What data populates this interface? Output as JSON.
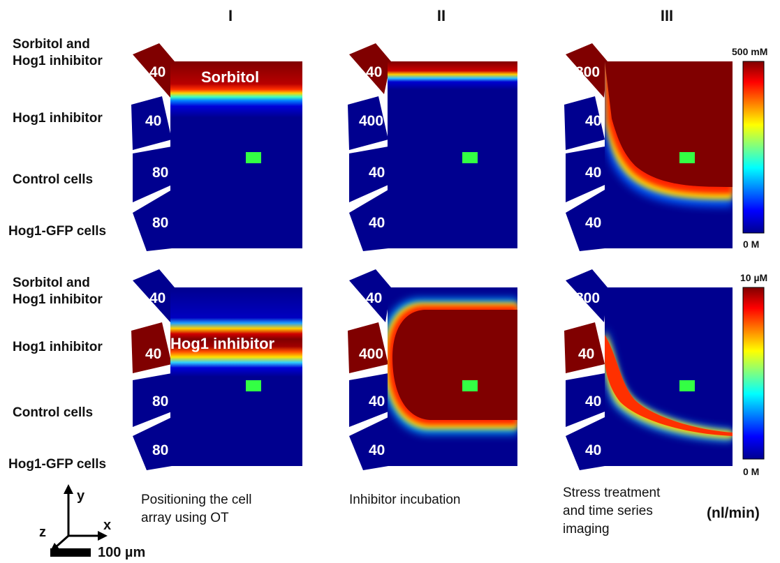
{
  "columns": [
    "I",
    "II",
    "III"
  ],
  "row_labels": {
    "top": [
      "Sorbitol and\nHog1 inhibitor",
      "Hog1 inhibitor",
      "Control cells",
      "Hog1-GFP cells"
    ],
    "bottom": [
      "Sorbitol and\nHog1 inhibitor",
      "Hog1 inhibitor",
      "Control cells",
      "Hog1-GFP cells"
    ]
  },
  "panels": {
    "top": [
      {
        "inlets": [
          "40",
          "40",
          "80",
          "80"
        ],
        "overlay": "Sorbitol"
      },
      {
        "inlets": [
          "40",
          "400",
          "40",
          "40"
        ],
        "overlay": ""
      },
      {
        "inlets": [
          "800",
          "40",
          "40",
          "40"
        ],
        "overlay": ""
      }
    ],
    "bottom": [
      {
        "inlets": [
          "40",
          "40",
          "80",
          "80"
        ],
        "overlay": "Hog1 inhibitor"
      },
      {
        "inlets": [
          "40",
          "400",
          "40",
          "40"
        ],
        "overlay": ""
      },
      {
        "inlets": [
          "800",
          "40",
          "40",
          "40"
        ],
        "overlay": ""
      }
    ]
  },
  "colorbars": {
    "top": {
      "max": "500 mM",
      "min": "0 M"
    },
    "bottom": {
      "max": "10 µM",
      "min": "0 M"
    }
  },
  "captions": [
    "Positioning the cell\narray using OT",
    "Inhibitor incubation",
    "Stress treatment\nand time series\nimaging"
  ],
  "units": "(nl/min)",
  "axes": {
    "x": "x",
    "y": "y",
    "z": "z"
  },
  "scale_bar": "100 µm",
  "colors": {
    "channel_low": "#00008f",
    "channel_high": "#800000",
    "cell_marker": "#33ff44"
  }
}
